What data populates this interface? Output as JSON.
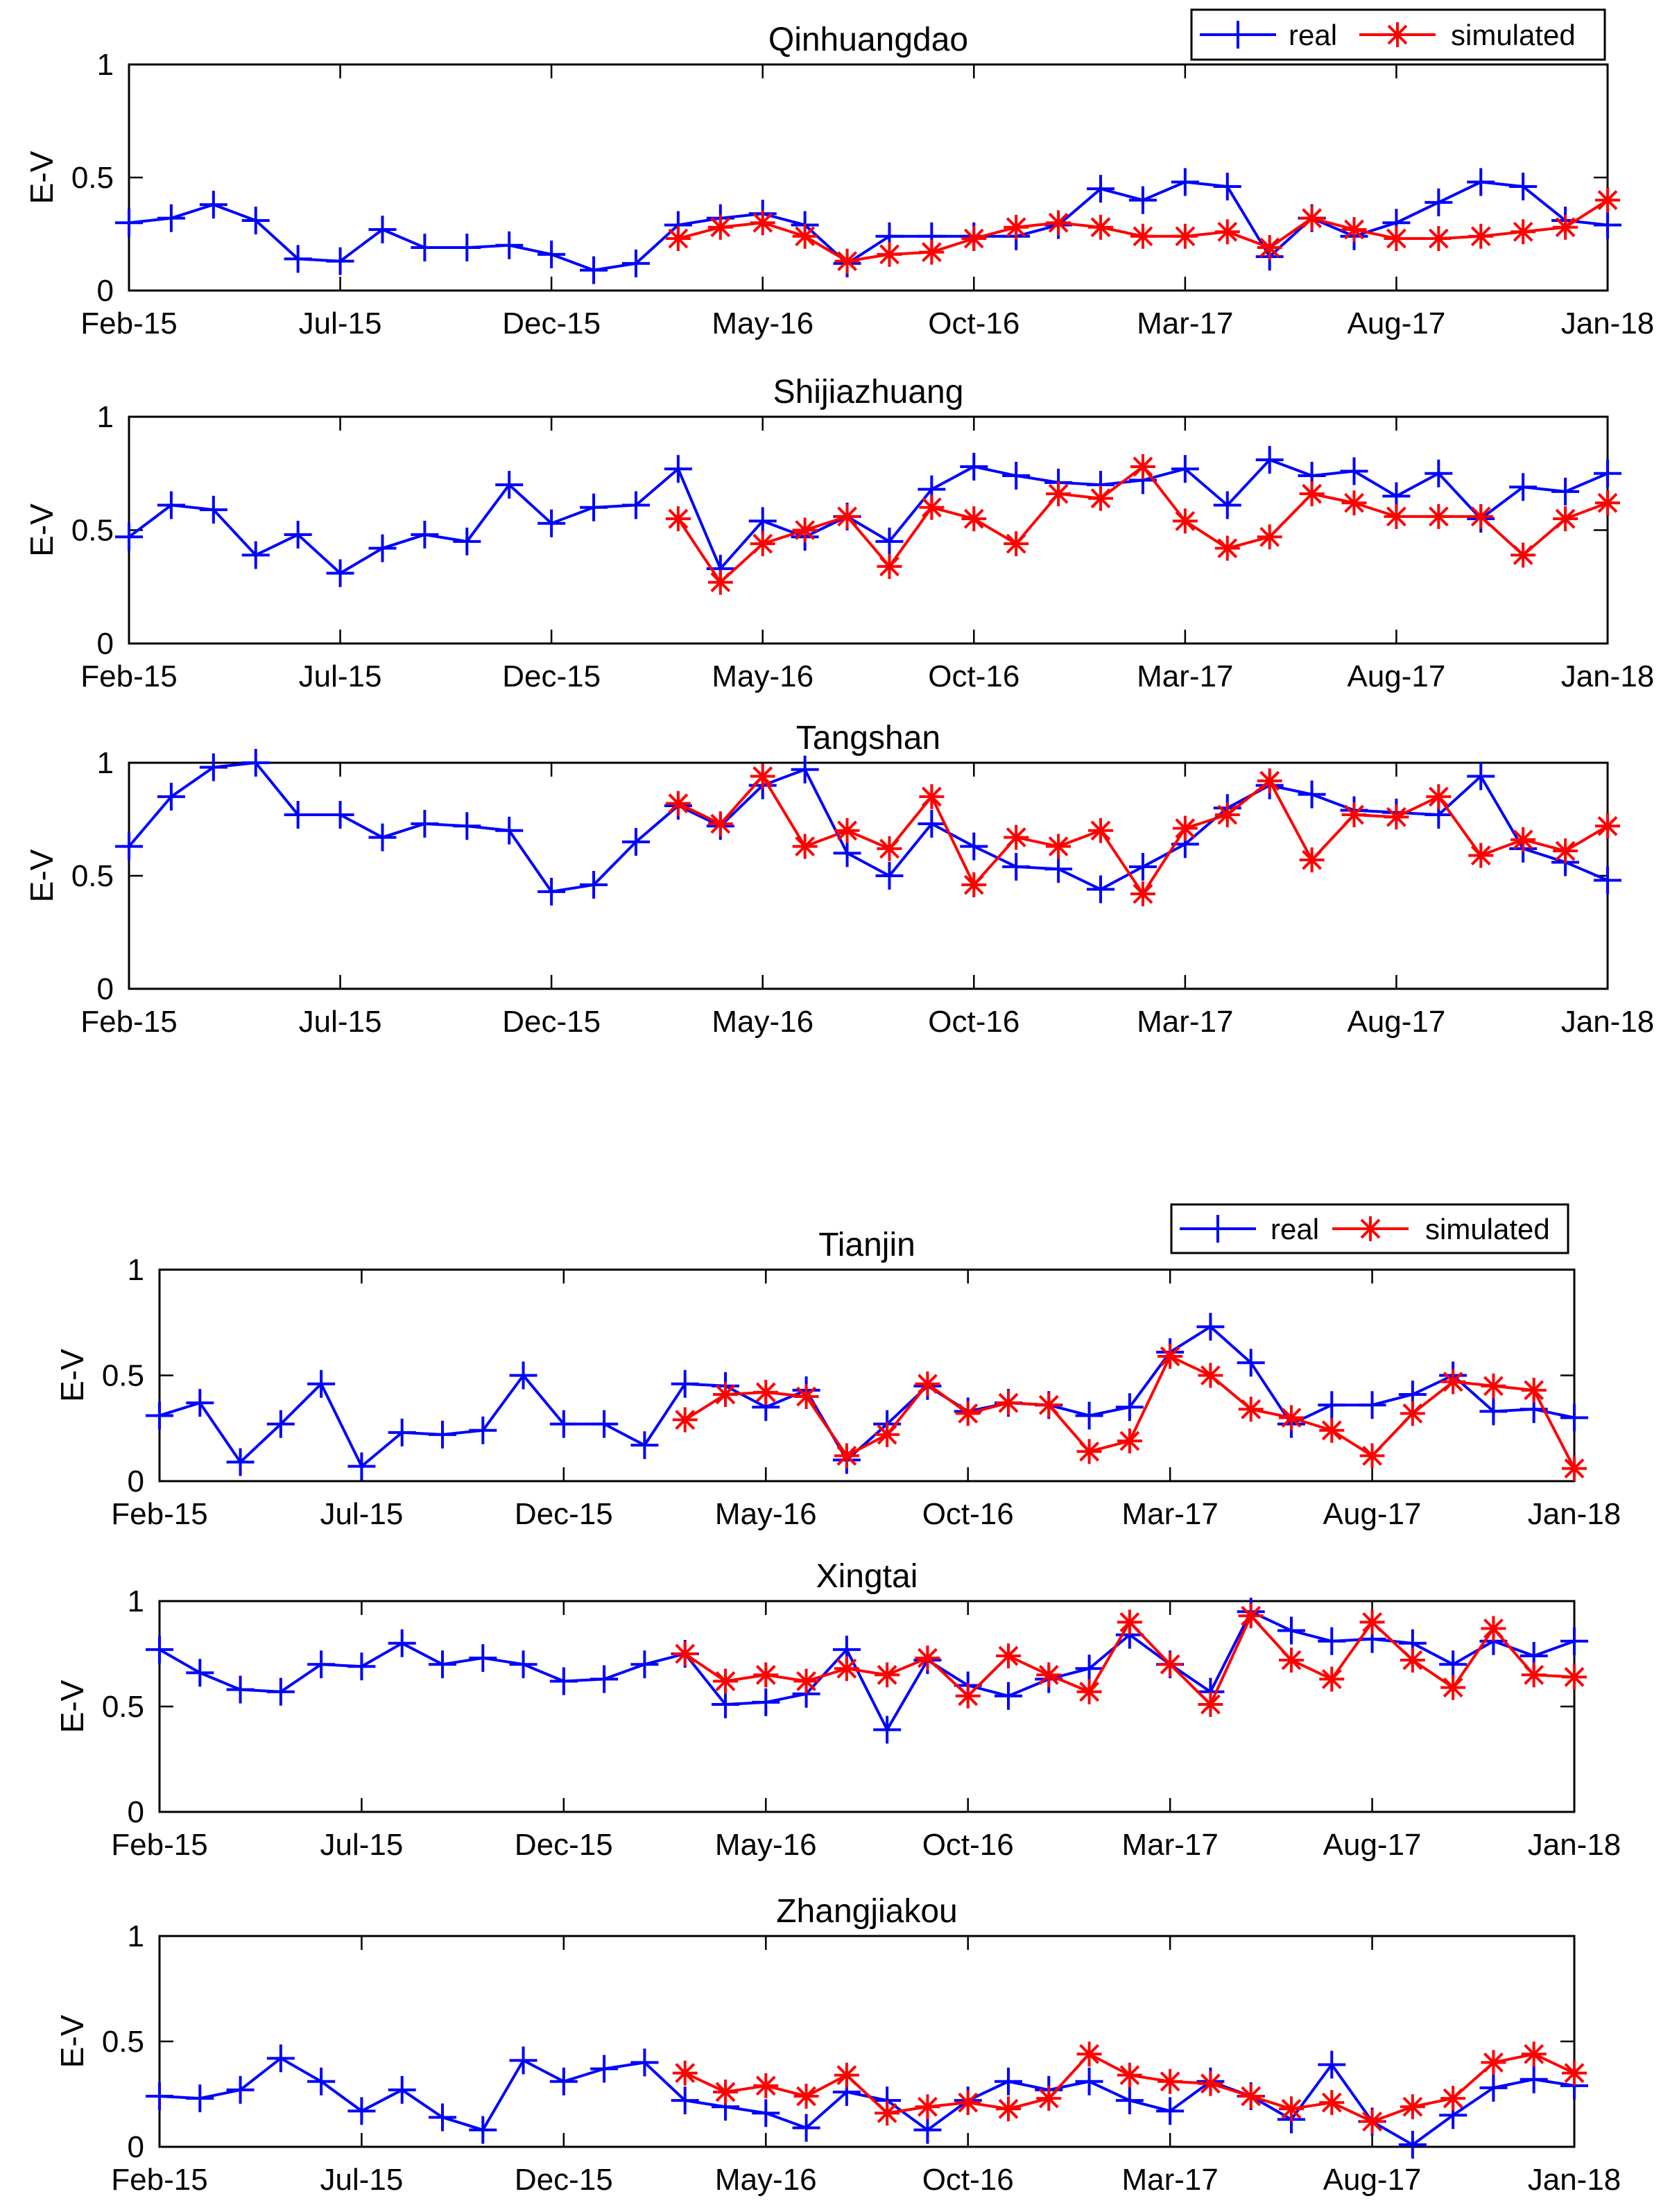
{
  "colors": {
    "real": "#0000ff",
    "simulated": "#ff0000"
  },
  "legend": {
    "real_label": "real",
    "simulated_label": "simulated"
  },
  "chart_data": [
    {
      "type": "line",
      "title": "Qinhuangdao",
      "ylabel": "E-V",
      "ylim": [
        0,
        1
      ],
      "yticks": [
        "0",
        "0.5",
        "1"
      ],
      "xticklabels": [
        "Feb-15",
        "Jul-15",
        "Dec-15",
        "May-16",
        "Oct-16",
        "Mar-17",
        "Aug-17",
        "Jan-18"
      ],
      "legend": true,
      "series": [
        {
          "name": "real",
          "start": 0,
          "marker": "plus",
          "values": [
            0.3,
            0.32,
            0.38,
            0.31,
            0.14,
            0.13,
            0.27,
            0.19,
            0.19,
            0.2,
            0.16,
            0.09,
            0.12,
            0.29,
            0.32,
            0.34,
            0.29,
            0.12,
            0.24,
            0.24,
            0.24,
            0.24,
            0.29,
            0.45,
            0.4,
            0.48,
            0.46,
            0.15,
            0.32,
            0.24,
            0.3,
            0.39,
            0.48,
            0.46,
            0.31,
            0.29
          ]
        },
        {
          "name": "simulated",
          "start": 13,
          "marker": "star",
          "values": [
            0.23,
            0.28,
            0.3,
            0.24,
            0.13,
            0.16,
            0.17,
            0.23,
            0.28,
            0.3,
            0.28,
            0.24,
            0.24,
            0.26,
            0.19,
            0.32,
            0.27,
            0.23,
            0.23,
            0.24,
            0.26,
            0.28,
            0.4
          ]
        }
      ]
    },
    {
      "type": "line",
      "title": "Shijiazhuang",
      "ylabel": "E-V",
      "ylim": [
        0,
        1
      ],
      "yticks": [
        "0",
        "0.5",
        "1"
      ],
      "xticklabels": [
        "Feb-15",
        "Jul-15",
        "Dec-15",
        "May-16",
        "Oct-16",
        "Mar-17",
        "Aug-17",
        "Jan-18"
      ],
      "legend": false,
      "series": [
        {
          "name": "real",
          "start": 0,
          "marker": "plus",
          "values": [
            0.47,
            0.61,
            0.59,
            0.39,
            0.48,
            0.31,
            0.42,
            0.48,
            0.45,
            0.7,
            0.53,
            0.6,
            0.61,
            0.77,
            0.33,
            0.54,
            0.47,
            0.56,
            0.45,
            0.68,
            0.78,
            0.74,
            0.71,
            0.7,
            0.72,
            0.77,
            0.61,
            0.81,
            0.74,
            0.76,
            0.65,
            0.75,
            0.55,
            0.69,
            0.67,
            0.75
          ]
        },
        {
          "name": "simulated",
          "start": 13,
          "marker": "star",
          "values": [
            0.55,
            0.27,
            0.44,
            0.5,
            0.56,
            0.34,
            0.6,
            0.55,
            0.44,
            0.66,
            0.64,
            0.78,
            0.54,
            0.42,
            0.47,
            0.66,
            0.62,
            0.56,
            0.56,
            0.56,
            0.39,
            0.55,
            0.62
          ]
        }
      ]
    },
    {
      "type": "line",
      "title": "Tangshan",
      "ylabel": "E-V",
      "ylim": [
        0,
        1
      ],
      "yticks": [
        "0",
        "0.5",
        "1"
      ],
      "xticklabels": [
        "Feb-15",
        "Jul-15",
        "Dec-15",
        "May-16",
        "Oct-16",
        "Mar-17",
        "Aug-17",
        "Jan-18"
      ],
      "legend": false,
      "series": [
        {
          "name": "real",
          "start": 0,
          "marker": "plus",
          "values": [
            0.63,
            0.85,
            0.98,
            1.0,
            0.77,
            0.77,
            0.67,
            0.73,
            0.72,
            0.7,
            0.43,
            0.46,
            0.65,
            0.81,
            0.72,
            0.9,
            0.97,
            0.6,
            0.5,
            0.73,
            0.63,
            0.54,
            0.53,
            0.44,
            0.54,
            0.64,
            0.8,
            0.9,
            0.86,
            0.79,
            0.78,
            0.77,
            0.94,
            0.62,
            0.56,
            0.48
          ]
        },
        {
          "name": "simulated",
          "start": 13,
          "marker": "star",
          "values": [
            0.82,
            0.73,
            0.94,
            0.63,
            0.7,
            0.62,
            0.85,
            0.46,
            0.67,
            0.63,
            0.7,
            0.42,
            0.71,
            0.77,
            0.92,
            0.57,
            0.77,
            0.76,
            0.85,
            0.59,
            0.66,
            0.61,
            0.72
          ]
        }
      ]
    },
    {
      "type": "line",
      "title": "Tianjin",
      "ylabel": "E-V",
      "ylim": [
        0,
        1
      ],
      "yticks": [
        "0",
        "0.5",
        "1"
      ],
      "xticklabels": [
        "Feb-15",
        "Jul-15",
        "Dec-15",
        "May-16",
        "Oct-16",
        "Mar-17",
        "Aug-17",
        "Jan-18"
      ],
      "legend": true,
      "series": [
        {
          "name": "real",
          "start": 0,
          "marker": "plus",
          "values": [
            0.31,
            0.37,
            0.09,
            0.27,
            0.46,
            0.07,
            0.23,
            0.22,
            0.24,
            0.5,
            0.27,
            0.27,
            0.17,
            0.46,
            0.45,
            0.35,
            0.43,
            0.1,
            0.27,
            0.45,
            0.33,
            0.37,
            0.36,
            0.31,
            0.35,
            0.61,
            0.73,
            0.56,
            0.27,
            0.36,
            0.36,
            0.41,
            0.5,
            0.33,
            0.34,
            0.3
          ]
        },
        {
          "name": "simulated",
          "start": 13,
          "marker": "star",
          "values": [
            0.29,
            0.41,
            0.42,
            0.4,
            0.12,
            0.22,
            0.46,
            0.32,
            0.37,
            0.36,
            0.14,
            0.19,
            0.59,
            0.5,
            0.34,
            0.3,
            0.24,
            0.12,
            0.32,
            0.47,
            0.45,
            0.43,
            0.06
          ]
        }
      ]
    },
    {
      "type": "line",
      "title": "Xingtai",
      "ylabel": "E-V",
      "ylim": [
        0,
        1
      ],
      "yticks": [
        "0",
        "0.5",
        "1"
      ],
      "xticklabels": [
        "Feb-15",
        "Jul-15",
        "Dec-15",
        "May-16",
        "Oct-16",
        "Mar-17",
        "Aug-17",
        "Jan-18"
      ],
      "legend": false,
      "series": [
        {
          "name": "real",
          "start": 0,
          "marker": "plus",
          "values": [
            0.77,
            0.66,
            0.58,
            0.57,
            0.7,
            0.69,
            0.8,
            0.7,
            0.73,
            0.7,
            0.62,
            0.63,
            0.7,
            0.75,
            0.51,
            0.52,
            0.56,
            0.77,
            0.39,
            0.72,
            0.6,
            0.55,
            0.63,
            0.68,
            0.84,
            0.7,
            0.57,
            0.95,
            0.86,
            0.81,
            0.82,
            0.8,
            0.7,
            0.81,
            0.74,
            0.81
          ]
        },
        {
          "name": "simulated",
          "start": 13,
          "marker": "star",
          "values": [
            0.75,
            0.62,
            0.65,
            0.62,
            0.68,
            0.65,
            0.73,
            0.55,
            0.74,
            0.65,
            0.57,
            0.9,
            0.7,
            0.51,
            0.93,
            0.72,
            0.63,
            0.9,
            0.72,
            0.59,
            0.87,
            0.65,
            0.64
          ]
        }
      ]
    },
    {
      "type": "line",
      "title": "Zhangjiakou",
      "ylabel": "E-V",
      "ylim": [
        0,
        1
      ],
      "yticks": [
        "0",
        "0.5",
        "1"
      ],
      "xticklabels": [
        "Feb-15",
        "Jul-15",
        "Dec-15",
        "May-16",
        "Oct-16",
        "Mar-17",
        "Aug-17",
        "Jan-18"
      ],
      "legend": false,
      "series": [
        {
          "name": "real",
          "start": 0,
          "marker": "plus",
          "values": [
            0.24,
            0.23,
            0.27,
            0.42,
            0.31,
            0.17,
            0.27,
            0.14,
            0.08,
            0.41,
            0.31,
            0.37,
            0.4,
            0.22,
            0.19,
            0.16,
            0.09,
            0.26,
            0.22,
            0.08,
            0.22,
            0.31,
            0.27,
            0.31,
            0.22,
            0.17,
            0.31,
            0.24,
            0.13,
            0.39,
            0.12,
            0.01,
            0.15,
            0.28,
            0.32,
            0.29
          ]
        },
        {
          "name": "simulated",
          "start": 13,
          "marker": "star",
          "values": [
            0.35,
            0.26,
            0.29,
            0.24,
            0.34,
            0.16,
            0.19,
            0.21,
            0.18,
            0.23,
            0.44,
            0.34,
            0.31,
            0.3,
            0.24,
            0.18,
            0.21,
            0.12,
            0.19,
            0.23,
            0.4,
            0.44,
            0.35
          ]
        }
      ]
    }
  ]
}
